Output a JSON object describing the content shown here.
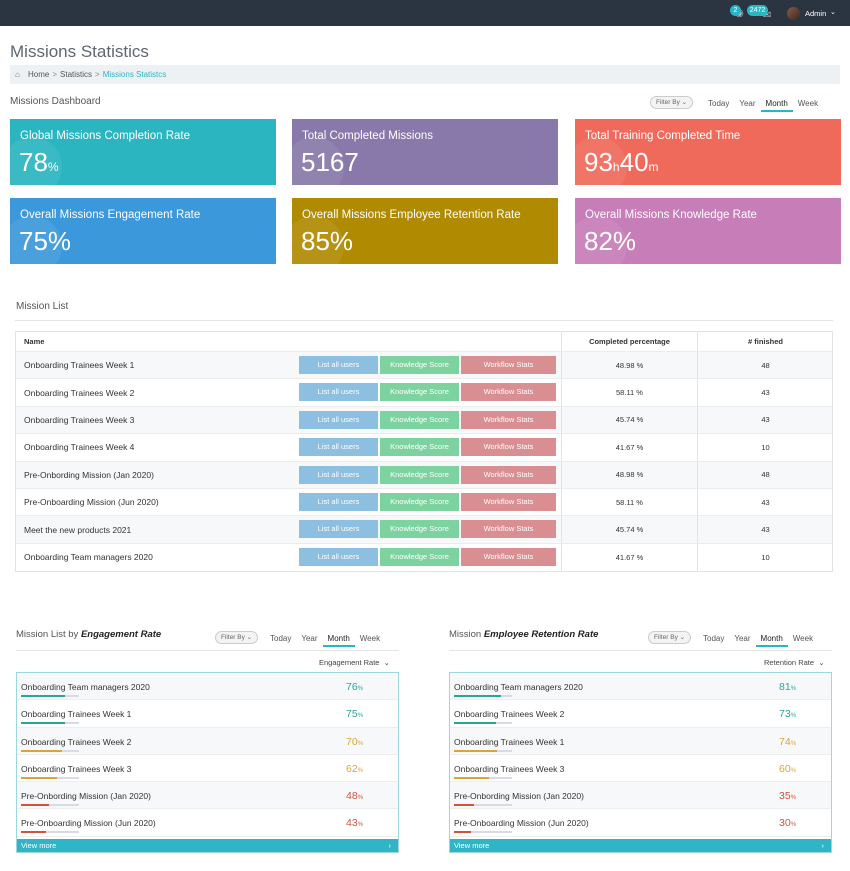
{
  "topbar": {
    "notifications_count": "2",
    "messages_count": "2472",
    "user_name": "Admin"
  },
  "page": {
    "title": "Missions Statistics"
  },
  "breadcrumb": {
    "items": [
      "Home",
      "Statistics",
      "Missions Statistcs"
    ]
  },
  "dashboard": {
    "title": "Missions Dashboard",
    "filter_label": "Filter By",
    "tabs": [
      "Today",
      "Year",
      "Month",
      "Week"
    ],
    "active_tab": "Month",
    "cards": [
      {
        "label": "Global Missions Completion Rate",
        "value": "78",
        "unit": "%",
        "color": "#2ab5c1"
      },
      {
        "label": "Total Completed Missions",
        "value": "5167",
        "unit": "",
        "color": "#8879aa"
      },
      {
        "label": "Total Training Completed Time",
        "value": "93",
        "unit": "h",
        "value2": "40",
        "unit2": "m",
        "color": "#ef6a5a"
      },
      {
        "label": "Overall Missions Engagement Rate",
        "value": "75%",
        "unit": "",
        "color": "#3a98db"
      },
      {
        "label": "Overall Missions Employee Retention Rate",
        "value": "85%",
        "unit": "",
        "color": "#b08a00"
      },
      {
        "label": "Overall Missions Knowledge Rate",
        "value": "82%",
        "unit": "",
        "color": "#c77db8"
      }
    ]
  },
  "mission_list": {
    "title": "Mission List",
    "columns": [
      "Name",
      "Completed percentage",
      "# finished"
    ],
    "buttons": {
      "users": "List all users",
      "knowledge": "Knowledge Score",
      "workflow": "Workflow Stats"
    },
    "rows": [
      {
        "name": "Onboarding Trainees Week 1",
        "pct": "48.98 %",
        "finished": "48"
      },
      {
        "name": "Onboarding Trainees Week 2",
        "pct": "58.11 %",
        "finished": "43"
      },
      {
        "name": "Onboarding Trainees Week 3",
        "pct": "45.74 %",
        "finished": "43"
      },
      {
        "name": "Onboarding Trainees Week 4",
        "pct": "41.67 %",
        "finished": "10"
      },
      {
        "name": "Pre-Onbording Mission (Jan 2020)",
        "pct": "48.98 %",
        "finished": "48"
      },
      {
        "name": "Pre-Onboarding Mission (Jun 2020)",
        "pct": "58.11 %",
        "finished": "43"
      },
      {
        "name": "Meet the new products 2021",
        "pct": "45.74 %",
        "finished": "43"
      },
      {
        "name": "Onboarding Team managers 2020",
        "pct": "41.67 %",
        "finished": "10"
      }
    ]
  },
  "engagement": {
    "title_prefix": "Mission List by ",
    "title_emph": "Engagement Rate",
    "filter_label": "Filter By",
    "tabs": [
      "Today",
      "Year",
      "Month",
      "Week"
    ],
    "active_tab": "Month",
    "sort_label": "Engagement Rate",
    "view_more": "View more",
    "rows": [
      {
        "name": "Onboarding Team managers 2020",
        "value": "76",
        "fraction": 0.76,
        "color": "#2aa59a"
      },
      {
        "name": "Onboarding Trainees Week 1",
        "value": "75",
        "fraction": 0.75,
        "color": "#2aa59a"
      },
      {
        "name": "Onboarding Trainees Week 2",
        "value": "70",
        "fraction": 0.7,
        "color": "#d9a43a"
      },
      {
        "name": "Onboarding Trainees Week 3",
        "value": "62",
        "fraction": 0.62,
        "color": "#d9a43a"
      },
      {
        "name": "Pre-Onbording Mission (Jan 2020)",
        "value": "48",
        "fraction": 0.48,
        "color": "#d0533e"
      },
      {
        "name": "Pre-Onboarding Mission (Jun 2020)",
        "value": "43",
        "fraction": 0.43,
        "color": "#d0533e"
      }
    ]
  },
  "retention": {
    "title_prefix": "Mission ",
    "title_emph": "Employee Retention Rate",
    "filter_label": "Filter By",
    "tabs": [
      "Today",
      "Year",
      "Month",
      "Week"
    ],
    "active_tab": "Month",
    "sort_label": "Retention Rate",
    "view_more": "View more",
    "rows": [
      {
        "name": "Onboarding Team managers 2020",
        "value": "81",
        "fraction": 0.81,
        "color": "#2aa59a"
      },
      {
        "name": "Onboarding Trainees Week 2",
        "value": "73",
        "fraction": 0.73,
        "color": "#2aa59a"
      },
      {
        "name": "Onboarding Trainees Week 1",
        "value": "74",
        "fraction": 0.74,
        "color": "#d9a43a"
      },
      {
        "name": "Onboarding Trainees Week 3",
        "value": "60",
        "fraction": 0.6,
        "color": "#d9a43a"
      },
      {
        "name": "Pre-Onbording Mission (Jan 2020)",
        "value": "35",
        "fraction": 0.35,
        "color": "#d0533e"
      },
      {
        "name": "Pre-Onboarding Mission (Jun 2020)",
        "value": "30",
        "fraction": 0.3,
        "color": "#d0533e"
      }
    ]
  }
}
